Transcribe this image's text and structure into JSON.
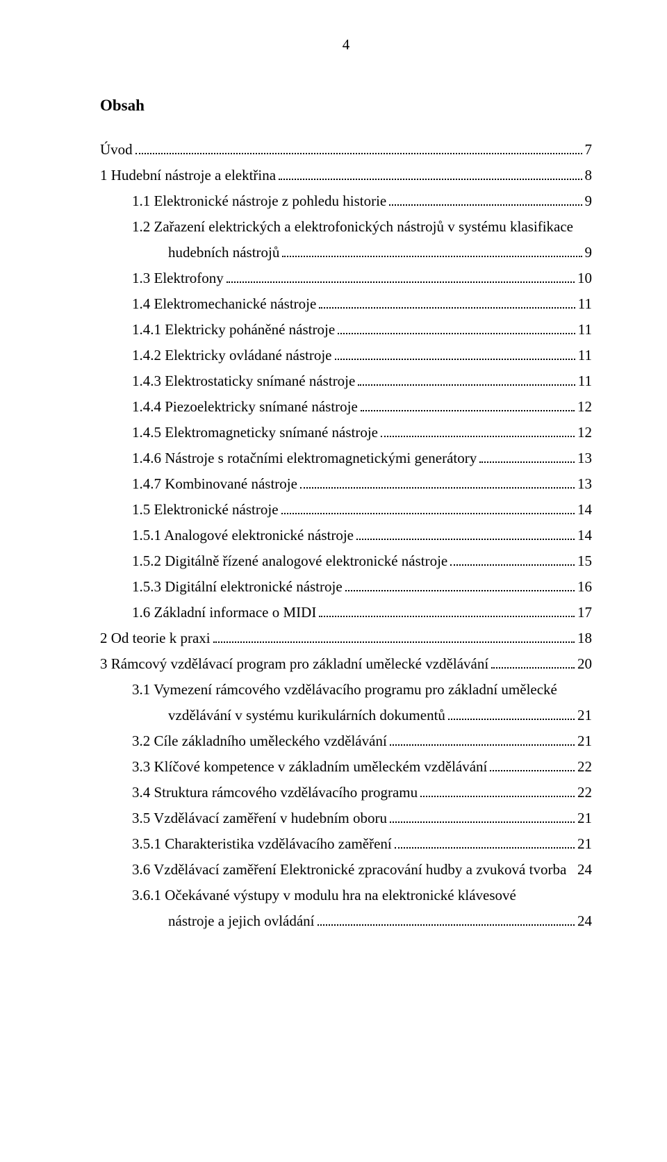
{
  "page_number": "4",
  "title": "Obsah",
  "toc": [
    {
      "label": "Úvod",
      "page": "7",
      "indent": 0
    },
    {
      "label": "1 Hudební nástroje a elektřina",
      "page": "8",
      "indent": 0
    },
    {
      "label": "1.1 Elektronické nástroje z pohledu historie",
      "page": "9",
      "indent": 1
    },
    {
      "label": "1.2 Zařazení elektrických a elektrofonických nástrojů v systému klasifikace",
      "cont": "hudebních nástrojů",
      "page": "9",
      "indent": 1
    },
    {
      "label": "1.3 Elektrofony",
      "page": "10",
      "indent": 1
    },
    {
      "label": "1.4 Elektromechanické nástroje",
      "page": "11",
      "indent": 1
    },
    {
      "label": "1.4.1 Elektricky poháněné nástroje",
      "page": "11",
      "indent": 2
    },
    {
      "label": "1.4.2 Elektricky ovládané nástroje",
      "page": "11",
      "indent": 2
    },
    {
      "label": "1.4.3 Elektrostaticky snímané nástroje",
      "page": "11",
      "indent": 2
    },
    {
      "label": "1.4.4 Piezoelektricky snímané nástroje",
      "page": "12",
      "indent": 2
    },
    {
      "label": "1.4.5 Elektromagneticky snímané nástroje",
      "page": "12",
      "indent": 2
    },
    {
      "label": "1.4.6 Nástroje s rotačními elektromagnetickými generátory",
      "page": "13",
      "indent": 2
    },
    {
      "label": "1.4.7 Kombinované nástroje",
      "page": "13",
      "indent": 2
    },
    {
      "label": "1.5 Elektronické nástroje",
      "page": "14",
      "indent": 1
    },
    {
      "label": "1.5.1 Analogové elektronické nástroje",
      "page": "14",
      "indent": 2
    },
    {
      "label": "1.5.2 Digitálně řízené analogové elektronické nástroje",
      "page": "15",
      "indent": 2
    },
    {
      "label": "1.5.3 Digitální elektronické nástroje",
      "page": "16",
      "indent": 2
    },
    {
      "label": "1.6 Základní informace o MIDI",
      "page": "17",
      "indent": 1
    },
    {
      "label": "2 Od teorie k praxi",
      "page": "18",
      "indent": 0
    },
    {
      "label": "3 Rámcový vzdělávací program pro základní umělecké vzdělávání",
      "page": "20",
      "indent": 0
    },
    {
      "label": "3.1 Vymezení rámcového vzdělávacího programu pro základní umělecké",
      "cont": "vzdělávání v systému kurikulárních dokumentů",
      "page": "21",
      "indent": 1
    },
    {
      "label": "3.2 Cíle základního uměleckého vzdělávání",
      "page": "21",
      "indent": 1
    },
    {
      "label": "3.3 Klíčové kompetence v základním uměleckém vzdělávání",
      "page": "22",
      "indent": 1
    },
    {
      "label": "3.4 Struktura rámcového vzdělávacího programu",
      "page": "22",
      "indent": 1
    },
    {
      "label": "3.5 Vzdělávací zaměření v hudebním oboru",
      "page": "21",
      "indent": 1
    },
    {
      "label": "3.5.1 Charakteristika vzdělávacího zaměření",
      "page": "21",
      "indent": 2
    },
    {
      "label": "3.6 Vzdělávací zaměření Elektronické zpracování hudby a zvuková tvorba",
      "page": "24",
      "indent": 1,
      "nodots": true
    },
    {
      "label": "3.6.1 Očekávané výstupy v modulu hra na elektronické klávesové",
      "cont": "nástroje a jejich ovládání",
      "page": "24",
      "indent": 2
    }
  ],
  "indent_class": {
    "0": "",
    "1": "indent-1",
    "2": "indent-2"
  },
  "text_color": "#000000",
  "background_color": "#ffffff",
  "font_family": "Times New Roman"
}
